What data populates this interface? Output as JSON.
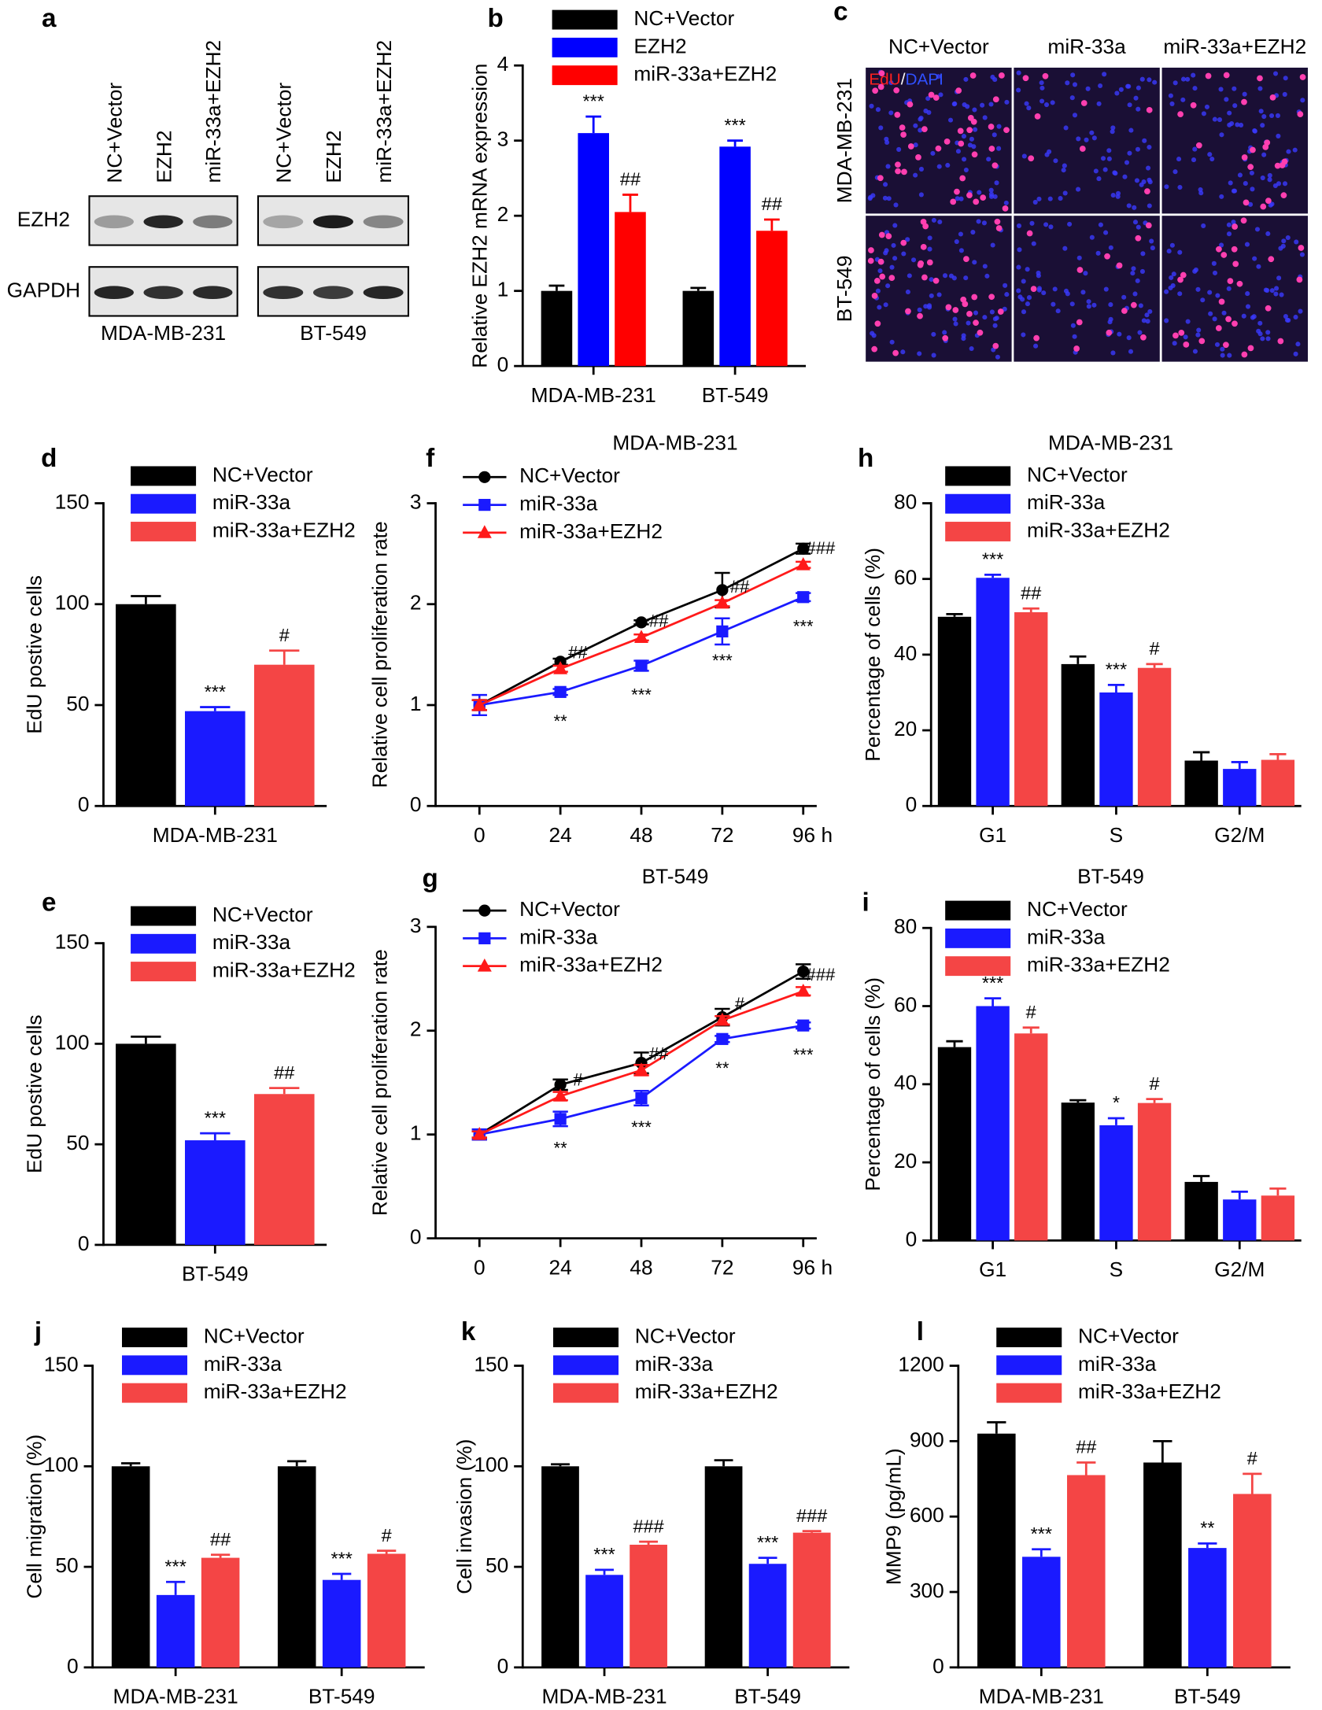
{
  "chart_data": [
    {
      "panel": "a",
      "type": "blot",
      "rows": [
        "EZH2",
        "GAPDH"
      ],
      "groups": [
        {
          "name": "MDA-MB-231",
          "lanes": [
            "NC+Vector",
            "EZH2",
            "miR-33a+EZH2"
          ]
        },
        {
          "name": "BT-549",
          "lanes": [
            "NC+Vector",
            "EZH2",
            "miR-33a+EZH2"
          ]
        }
      ]
    },
    {
      "panel": "b",
      "type": "bar",
      "ylabel": "Relative EZH2 mRNA expression",
      "categories": [
        "MDA-MB-231",
        "BT-549"
      ],
      "ylim": [
        0,
        4
      ],
      "yticks": [
        0,
        1,
        2,
        3,
        4
      ],
      "series": [
        {
          "name": "NC+Vector",
          "color": "#000000",
          "values": [
            1.0,
            1.0
          ],
          "errors": [
            0.07,
            0.04
          ]
        },
        {
          "name": "EZH2",
          "color": "#0000ff",
          "values": [
            3.1,
            2.92
          ],
          "errors": [
            0.22,
            0.08
          ],
          "annotations": [
            "***",
            "***"
          ]
        },
        {
          "name": "miR-33a+EZH2",
          "color": "#ff0000",
          "values": [
            2.05,
            1.8
          ],
          "errors": [
            0.23,
            0.15
          ],
          "annotations": [
            "##",
            "##"
          ]
        }
      ]
    },
    {
      "panel": "c",
      "type": "image",
      "columns": [
        "NC+Vector",
        "miR-33a",
        "miR-33a+EZH2"
      ],
      "rows": [
        "MDA-MB-231",
        "BT-549"
      ],
      "stain": [
        "EdU",
        "/",
        "DAPI"
      ]
    },
    {
      "panel": "d",
      "type": "bar",
      "ylabel": "EdU postive cells",
      "categories": [
        "MDA-MB-231"
      ],
      "ylim": [
        0,
        150
      ],
      "yticks": [
        0,
        50,
        100,
        150
      ],
      "series": [
        {
          "name": "NC+Vector",
          "color": "#000000",
          "values": [
            100
          ],
          "errors": [
            4
          ]
        },
        {
          "name": "miR-33a",
          "color": "#1a1aff",
          "values": [
            47
          ],
          "errors": [
            2
          ],
          "annotations": [
            "***"
          ]
        },
        {
          "name": "miR-33a+EZH2",
          "color": "#f44545",
          "values": [
            70
          ],
          "errors": [
            7
          ],
          "annotations": [
            "#"
          ]
        }
      ]
    },
    {
      "panel": "e",
      "type": "bar",
      "ylabel": "EdU postive cells",
      "categories": [
        "BT-549"
      ],
      "ylim": [
        0,
        150
      ],
      "yticks": [
        0,
        50,
        100,
        150
      ],
      "series": [
        {
          "name": "NC+Vector",
          "color": "#000000",
          "values": [
            100
          ],
          "errors": [
            3.5
          ]
        },
        {
          "name": "miR-33a",
          "color": "#1a1aff",
          "values": [
            52
          ],
          "errors": [
            3.5
          ],
          "annotations": [
            "***"
          ]
        },
        {
          "name": "miR-33a+EZH2",
          "color": "#f44545",
          "values": [
            75
          ],
          "errors": [
            3
          ],
          "annotations": [
            "##"
          ]
        }
      ]
    },
    {
      "panel": "f",
      "type": "line",
      "title": "MDA-MB-231",
      "ylabel": "Relative cell proliferation rate",
      "x": [
        0,
        24,
        48,
        72,
        96
      ],
      "xlim": [
        -13,
        100
      ],
      "xticks": [
        0,
        24,
        48,
        72,
        {
          "value": 96,
          "label": "96 h"
        }
      ],
      "ylim": [
        0,
        3
      ],
      "yticks": [
        0,
        1,
        2,
        3
      ],
      "series": [
        {
          "name": "NC+Vector",
          "color": "#000000",
          "marker": "circle",
          "values": [
            1.0,
            1.43,
            1.82,
            2.14,
            2.55
          ],
          "errors": [
            0.05,
            0.03,
            0.02,
            0.17,
            0.05
          ]
        },
        {
          "name": "miR-33a",
          "color": "#1a1aff",
          "marker": "square",
          "values": [
            1.0,
            1.13,
            1.39,
            1.73,
            2.07
          ],
          "errors": [
            0.1,
            0.03,
            0.05,
            0.13,
            0.04
          ],
          "annotations": [
            null,
            "**",
            "***",
            "***",
            "***"
          ]
        },
        {
          "name": "miR-33a+EZH2",
          "color": "#ff1a1a",
          "marker": "triangle",
          "values": [
            1.0,
            1.36,
            1.67,
            2.01,
            2.39
          ],
          "errors": [
            0.05,
            0.03,
            0.03,
            0.03,
            0.03
          ],
          "annotations": [
            null,
            "##",
            "##",
            "##",
            "###"
          ]
        }
      ]
    },
    {
      "panel": "g",
      "type": "line",
      "title": "BT-549",
      "ylabel": "Relative cell proliferation rate",
      "x": [
        0,
        24,
        48,
        72,
        96
      ],
      "xlim": [
        -13,
        100
      ],
      "xticks": [
        0,
        24,
        48,
        72,
        {
          "value": 96,
          "label": "96 h"
        }
      ],
      "ylim": [
        0,
        3
      ],
      "yticks": [
        0,
        1,
        2,
        3
      ],
      "series": [
        {
          "name": "NC+Vector",
          "color": "#000000",
          "marker": "circle",
          "values": [
            1.0,
            1.48,
            1.69,
            2.13,
            2.57
          ],
          "errors": [
            0.03,
            0.05,
            0.1,
            0.08,
            0.07
          ]
        },
        {
          "name": "miR-33a",
          "color": "#1a1aff",
          "marker": "square",
          "values": [
            1.0,
            1.15,
            1.35,
            1.92,
            2.05
          ],
          "errors": [
            0.05,
            0.07,
            0.07,
            0.03,
            0.03
          ],
          "annotations": [
            null,
            "**",
            "***",
            "**",
            "***"
          ]
        },
        {
          "name": "miR-33a+EZH2",
          "color": "#ff1a1a",
          "marker": "triangle",
          "values": [
            1.0,
            1.37,
            1.62,
            2.1,
            2.38
          ],
          "errors": [
            0.03,
            0.04,
            0.05,
            0.04,
            0.04
          ],
          "annotations": [
            null,
            "#",
            "##",
            "#",
            "###"
          ]
        }
      ]
    },
    {
      "panel": "h",
      "type": "bar",
      "title": "MDA-MB-231",
      "ylabel": "Percentage of cells (%)",
      "categories": [
        "G1",
        "S",
        "G2/M"
      ],
      "ylim": [
        0,
        80
      ],
      "yticks": [
        0,
        20,
        40,
        60,
        80
      ],
      "series": [
        {
          "name": "NC+Vector",
          "color": "#000000",
          "values": [
            50,
            37.5,
            12
          ],
          "errors": [
            0.7,
            2,
            2.2
          ]
        },
        {
          "name": "miR-33a",
          "color": "#1a1aff",
          "values": [
            60.3,
            30,
            9.8
          ],
          "errors": [
            0.8,
            2,
            1.8
          ],
          "annotations": [
            "***",
            "***",
            null
          ]
        },
        {
          "name": "miR-33a+EZH2",
          "color": "#f44545",
          "values": [
            51.2,
            36.5,
            12.2
          ],
          "errors": [
            1,
            1,
            1.5
          ],
          "annotations": [
            "##",
            "#",
            null
          ]
        }
      ]
    },
    {
      "panel": "i",
      "type": "bar",
      "title": "BT-549",
      "ylabel": "Percentage of cells (%)",
      "categories": [
        "G1",
        "S",
        "G2/M"
      ],
      "ylim": [
        0,
        80
      ],
      "yticks": [
        0,
        20,
        40,
        60,
        80
      ],
      "series": [
        {
          "name": "NC+Vector",
          "color": "#000000",
          "values": [
            49.5,
            35.3,
            15
          ],
          "errors": [
            1.5,
            0.6,
            1.5
          ]
        },
        {
          "name": "miR-33a",
          "color": "#1a1aff",
          "values": [
            60,
            29.5,
            10.5
          ],
          "errors": [
            2,
            1.8,
            2
          ],
          "annotations": [
            "***",
            "*",
            null
          ]
        },
        {
          "name": "miR-33a+EZH2",
          "color": "#f44545",
          "values": [
            53,
            35.2,
            11.5
          ],
          "errors": [
            1.5,
            1,
            1.8
          ],
          "annotations": [
            "#",
            "#",
            null
          ]
        }
      ]
    },
    {
      "panel": "j",
      "type": "bar",
      "ylabel": "Cell migration (%)",
      "categories": [
        "MDA-MB-231",
        "BT-549"
      ],
      "ylim": [
        0,
        150
      ],
      "yticks": [
        0,
        50,
        100,
        150
      ],
      "series": [
        {
          "name": "NC+Vector",
          "color": "#000000",
          "values": [
            100,
            100
          ],
          "errors": [
            1.5,
            2.5
          ]
        },
        {
          "name": "miR-33a",
          "color": "#1a1aff",
          "values": [
            36,
            43.5
          ],
          "errors": [
            6.5,
            3
          ],
          "annotations": [
            "***",
            "***"
          ]
        },
        {
          "name": "miR-33a+EZH2",
          "color": "#f44545",
          "values": [
            54.5,
            56.5
          ],
          "errors": [
            1.5,
            1.5
          ],
          "annotations": [
            "##",
            "#"
          ]
        }
      ]
    },
    {
      "panel": "k",
      "type": "bar",
      "ylabel": "Cell invasion (%)",
      "categories": [
        "MDA-MB-231",
        "BT-549"
      ],
      "ylim": [
        0,
        150
      ],
      "yticks": [
        0,
        50,
        100,
        150
      ],
      "series": [
        {
          "name": "NC+Vector",
          "color": "#000000",
          "values": [
            100,
            100
          ],
          "errors": [
            1,
            3
          ]
        },
        {
          "name": "miR-33a",
          "color": "#1a1aff",
          "values": [
            46,
            51.5
          ],
          "errors": [
            2.5,
            3
          ],
          "annotations": [
            "***",
            "***"
          ]
        },
        {
          "name": "miR-33a+EZH2",
          "color": "#f44545",
          "values": [
            61,
            67
          ],
          "errors": [
            1.5,
            0.8
          ],
          "annotations": [
            "###",
            "###"
          ]
        }
      ]
    },
    {
      "panel": "l",
      "type": "bar",
      "ylabel": "MMP9 (pg/mL)",
      "categories": [
        "MDA-MB-231",
        "BT-549"
      ],
      "ylim": [
        0,
        1200
      ],
      "yticks": [
        0,
        300,
        600,
        900,
        1200
      ],
      "series": [
        {
          "name": "NC+Vector",
          "color": "#000000",
          "values": [
            930,
            815
          ],
          "errors": [
            45,
            85
          ]
        },
        {
          "name": "miR-33a",
          "color": "#1a1aff",
          "values": [
            440,
            475
          ],
          "errors": [
            30,
            18
          ],
          "annotations": [
            "***",
            "**"
          ]
        },
        {
          "name": "miR-33a+EZH2",
          "color": "#f44545",
          "values": [
            765,
            690
          ],
          "errors": [
            50,
            80
          ],
          "annotations": [
            "##",
            "#"
          ]
        }
      ]
    }
  ]
}
